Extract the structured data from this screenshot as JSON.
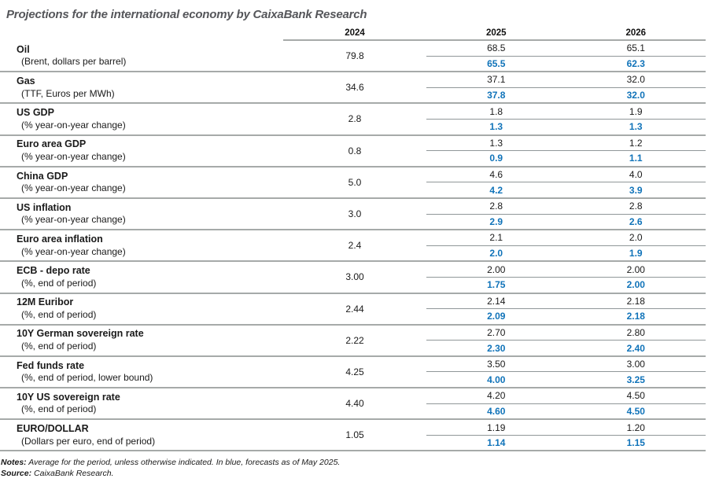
{
  "title": "Projections for the international economy by CaixaBank Research",
  "chart_data": {
    "type": "table",
    "title": "Projections for the international economy by CaixaBank Research",
    "columns": [
      "2024",
      "2025",
      "2026"
    ],
    "value_legend": "Each 2025/2026 cell shows previous forecast (black, top) and forecast as of May 2025 (blue, bottom)",
    "rows": [
      {
        "name": "Oil",
        "sub": "(Brent, dollars per barrel)",
        "y2024": "79.8",
        "y2025": "68.5",
        "y2025_blue": "65.5",
        "y2026": "65.1",
        "y2026_blue": "62.3"
      },
      {
        "name": "Gas",
        "sub": "(TTF, Euros per MWh)",
        "y2024": "34.6",
        "y2025": "37.1",
        "y2025_blue": "37.8",
        "y2026": "32.0",
        "y2026_blue": "32.0"
      },
      {
        "name": "US GDP",
        "sub": "(% year-on-year change)",
        "y2024": "2.8",
        "y2025": "1.8",
        "y2025_blue": "1.3",
        "y2026": "1.9",
        "y2026_blue": "1.3"
      },
      {
        "name": "Euro area GDP",
        "sub": "(% year-on-year change)",
        "y2024": "0.8",
        "y2025": "1.3",
        "y2025_blue": "0.9",
        "y2026": "1.2",
        "y2026_blue": "1.1"
      },
      {
        "name": "China GDP",
        "sub": "(% year-on-year change)",
        "y2024": "5.0",
        "y2025": "4.6",
        "y2025_blue": "4.2",
        "y2026": "4.0",
        "y2026_blue": "3.9"
      },
      {
        "name": "US inflation",
        "sub": "(% year-on-year change)",
        "y2024": "3.0",
        "y2025": "2.8",
        "y2025_blue": "2.9",
        "y2026": "2.8",
        "y2026_blue": "2.6"
      },
      {
        "name": "Euro area inflation",
        "sub": "(% year-on-year change)",
        "y2024": "2.4",
        "y2025": "2.1",
        "y2025_blue": "2.0",
        "y2026": "2.0",
        "y2026_blue": "1.9"
      },
      {
        "name": "ECB - depo rate",
        "sub": "(%, end of period)",
        "y2024": "3.00",
        "y2025": "2.00",
        "y2025_blue": "1.75",
        "y2026": "2.00",
        "y2026_blue": "2.00"
      },
      {
        "name": "12M Euribor",
        "sub": "(%, end of period)",
        "y2024": "2.44",
        "y2025": "2.14",
        "y2025_blue": "2.09",
        "y2026": "2.18",
        "y2026_blue": "2.18"
      },
      {
        "name": "10Y German sovereign rate",
        "sub": "(%, end of period)",
        "y2024": "2.22",
        "y2025": "2.70",
        "y2025_blue": "2.30",
        "y2026": "2.80",
        "y2026_blue": "2.40"
      },
      {
        "name": "Fed funds rate",
        "sub": "(%, end of period, lower bound)",
        "y2024": "4.25",
        "y2025": "3.50",
        "y2025_blue": "4.00",
        "y2026": "3.00",
        "y2026_blue": "3.25"
      },
      {
        "name": "10Y US sovereign rate",
        "sub": "(%, end of period)",
        "y2024": "4.40",
        "y2025": "4.20",
        "y2025_blue": "4.60",
        "y2026": "4.50",
        "y2026_blue": "4.50"
      },
      {
        "name": "EURO/DOLLAR",
        "sub": "(Dollars per euro, end of period)",
        "y2024": "1.05",
        "y2025": "1.19",
        "y2025_blue": "1.14",
        "y2026": "1.20",
        "y2026_blue": "1.15"
      }
    ]
  },
  "notes": {
    "label": "Notes:",
    "text": "Average for the period, unless otherwise indicated. In blue, forecasts as of May 2025."
  },
  "source": {
    "label": "Source:",
    "text": "CaixaBank Research."
  },
  "colors": {
    "forecast_blue": "#1073b9",
    "separator_gray": "#a6aaa9",
    "title_gray": "#55565a"
  }
}
